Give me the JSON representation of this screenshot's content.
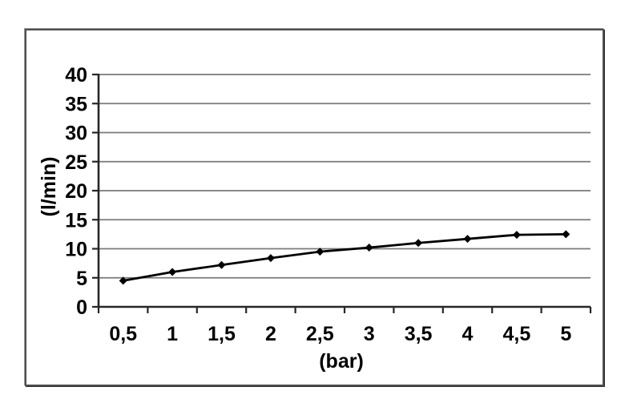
{
  "chart_data": {
    "type": "line",
    "title": "",
    "xlabel": "(bar)",
    "ylabel": "(l/min)",
    "x": [
      0.5,
      1,
      1.5,
      2,
      2.5,
      3,
      3.5,
      4,
      4.5,
      5
    ],
    "x_tick_labels": [
      "0,5",
      "1",
      "1,5",
      "2",
      "2,5",
      "3",
      "3,5",
      "4",
      "4,5",
      "5"
    ],
    "y_tick_labels": [
      "0",
      "5",
      "10",
      "15",
      "20",
      "25",
      "30",
      "35",
      "40"
    ],
    "y_tick_values": [
      0,
      5,
      10,
      15,
      20,
      25,
      30,
      35,
      40
    ],
    "series": [
      {
        "values": [
          4.5,
          6.0,
          7.2,
          8.4,
          9.5,
          10.2,
          11.0,
          11.7,
          12.4,
          12.5
        ]
      }
    ],
    "ylim": [
      0,
      40
    ],
    "grid": "horizontal",
    "legend": "none",
    "marker": "diamond",
    "colors": {
      "line": "#000000",
      "marker": "#000000",
      "gridline": "#7a7a7a",
      "axis": "#262626",
      "tick_text": "#000000",
      "frame_border": "#4d4d4d",
      "background": "#ffffff"
    }
  }
}
